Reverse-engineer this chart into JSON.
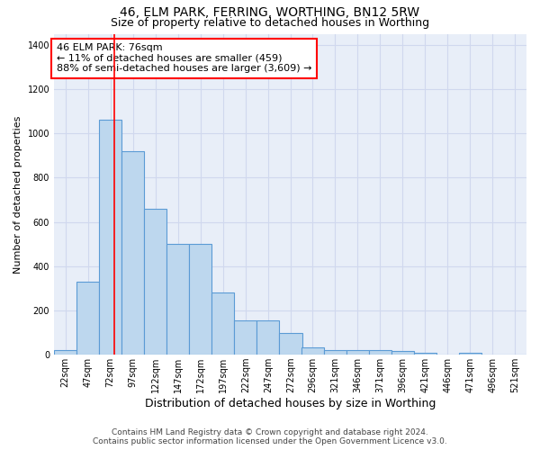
{
  "title": "46, ELM PARK, FERRING, WORTHING, BN12 5RW",
  "subtitle": "Size of property relative to detached houses in Worthing",
  "xlabel": "Distribution of detached houses by size in Worthing",
  "ylabel": "Number of detached properties",
  "footer_line1": "Contains HM Land Registry data © Crown copyright and database right 2024.",
  "footer_line2": "Contains public sector information licensed under the Open Government Licence v3.0.",
  "annotation_line1": "46 ELM PARK: 76sqm",
  "annotation_line2": "← 11% of detached houses are smaller (459)",
  "annotation_line3": "88% of semi-detached houses are larger (3,609) →",
  "property_size": 76,
  "bar_edge_color": "#5B9BD5",
  "bar_face_color": "#BDD7EE",
  "bar_linewidth": 0.8,
  "redline_color": "#FF0000",
  "categories": [
    "22sqm",
    "47sqm",
    "72sqm",
    "97sqm",
    "122sqm",
    "147sqm",
    "172sqm",
    "197sqm",
    "222sqm",
    "247sqm",
    "272sqm",
    "296sqm",
    "321sqm",
    "346sqm",
    "371sqm",
    "396sqm",
    "421sqm",
    "446sqm",
    "471sqm",
    "496sqm",
    "521sqm"
  ],
  "cat_centers": [
    22,
    47,
    72,
    97,
    122,
    147,
    172,
    197,
    222,
    247,
    272,
    296,
    321,
    346,
    371,
    396,
    421,
    446,
    471,
    496,
    521
  ],
  "values": [
    20,
    330,
    1060,
    920,
    660,
    500,
    500,
    280,
    155,
    155,
    100,
    35,
    20,
    20,
    20,
    15,
    10,
    0,
    10,
    0,
    0
  ],
  "ylim": [
    0,
    1450
  ],
  "yticks": [
    0,
    200,
    400,
    600,
    800,
    1000,
    1200,
    1400
  ],
  "grid_color": "#D0D8EE",
  "bg_color": "#E8EEF8",
  "title_fontsize": 10,
  "subtitle_fontsize": 9,
  "xlabel_fontsize": 9,
  "ylabel_fontsize": 8,
  "tick_fontsize": 7,
  "footer_fontsize": 6.5,
  "annotation_fontsize": 8
}
